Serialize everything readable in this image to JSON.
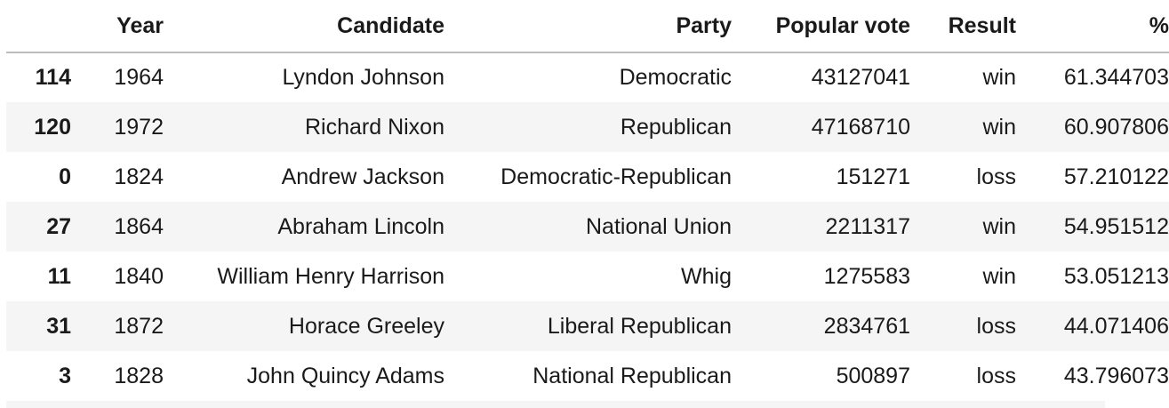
{
  "table": {
    "columns": [
      "",
      "Year",
      "Candidate",
      "Party",
      "Popular vote",
      "Result",
      "%"
    ],
    "rows": [
      {
        "index": "114",
        "year": "1964",
        "candidate": "Lyndon Johnson",
        "party": "Democratic",
        "popular_vote": "43127041",
        "result": "win",
        "pct": "61.344703"
      },
      {
        "index": "120",
        "year": "1972",
        "candidate": "Richard Nixon",
        "party": "Republican",
        "popular_vote": "47168710",
        "result": "win",
        "pct": "60.907806"
      },
      {
        "index": "0",
        "year": "1824",
        "candidate": "Andrew Jackson",
        "party": "Democratic-Republican",
        "popular_vote": "151271",
        "result": "loss",
        "pct": "57.210122"
      },
      {
        "index": "27",
        "year": "1864",
        "candidate": "Abraham Lincoln",
        "party": "National Union",
        "popular_vote": "2211317",
        "result": "win",
        "pct": "54.951512"
      },
      {
        "index": "11",
        "year": "1840",
        "candidate": "William Henry Harrison",
        "party": "Whig",
        "popular_vote": "1275583",
        "result": "win",
        "pct": "53.051213"
      },
      {
        "index": "31",
        "year": "1872",
        "candidate": "Horace Greeley",
        "party": "Liberal Republican",
        "popular_vote": "2834761",
        "result": "loss",
        "pct": "44.071406"
      },
      {
        "index": "3",
        "year": "1828",
        "candidate": "John Quincy Adams",
        "party": "National Republican",
        "popular_vote": "500897",
        "result": "loss",
        "pct": "43.796073"
      }
    ]
  }
}
